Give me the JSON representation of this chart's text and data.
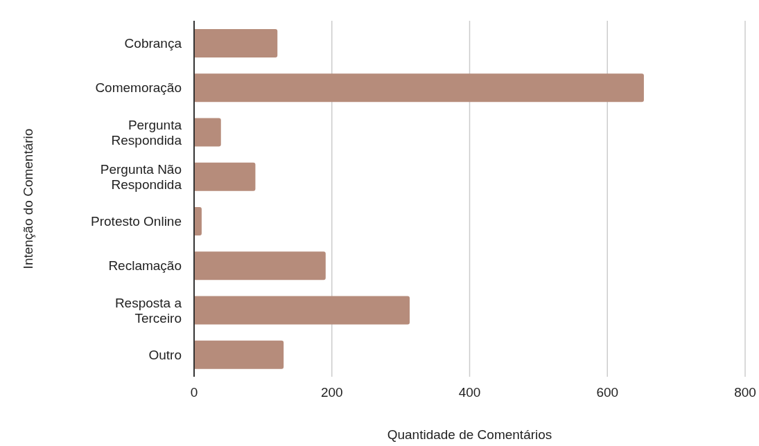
{
  "chart_data": {
    "type": "bar",
    "orientation": "horizontal",
    "xlabel": "Quantidade de Comentários",
    "ylabel": "Intenção do Comentário",
    "categories": [
      "Cobrança",
      "Comemoração",
      "Pergunta Respondida",
      "Pergunta Não Respondida",
      "Protesto Online",
      "Reclamação",
      "Resposta a Terceiro",
      "Outro"
    ],
    "values": [
      121,
      653,
      39,
      89,
      11,
      191,
      313,
      130
    ],
    "color": "#b68c7b",
    "xlim": [
      0,
      800
    ],
    "xticks": [
      0,
      200,
      400,
      600,
      800
    ],
    "grid": "x",
    "legend": false
  }
}
